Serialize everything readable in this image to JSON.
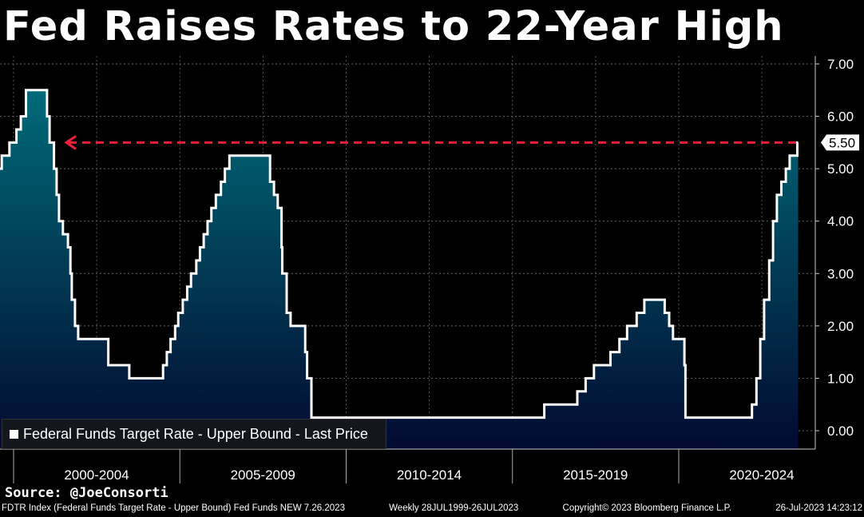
{
  "title": "Fed Raises Rates to 22-Year High",
  "source": "Source: @JoeConsorti",
  "footer": {
    "security": "FDTR Index (Federal Funds Target Rate - Upper Bound) Fed Funds NEW 7.26.2023",
    "range": "Weekly 28JUL1999-26JUL2023",
    "copyright": "Copyright© 2023 Bloomberg Finance L.P.",
    "timestamp": "26-Jul-2023 14:23:12"
  },
  "chart_data": {
    "type": "area",
    "title": "Fed Raises Rates to 22-Year High",
    "legend": "Federal Funds Target Rate - Upper Bound - Last Price",
    "legend_placement": "bottom-left",
    "y_axis_side": "right",
    "ylim": [
      0,
      7
    ],
    "y_ticks": [
      "0.00",
      "1.00",
      "2.00",
      "3.00",
      "4.00",
      "5.00",
      "6.00",
      "7.00"
    ],
    "x_ticks": [
      "2000-2004",
      "2005-2009",
      "2010-2014",
      "2015-2019",
      "2020-2024"
    ],
    "grid": true,
    "last_value": "5.50",
    "annotation": "dashed red arrow at 5.50 pointing back to 2000-2001",
    "colors": {
      "line": "#ffffff",
      "fill_top": "#006a78",
      "fill_bottom": "#020a30",
      "arrow": "#f0203c"
    },
    "steps": [
      [
        "1999-07-28",
        5.0
      ],
      [
        "1999-08-24",
        5.25
      ],
      [
        "1999-11-16",
        5.5
      ],
      [
        "2000-02-02",
        5.75
      ],
      [
        "2000-03-21",
        6.0
      ],
      [
        "2000-05-16",
        6.5
      ],
      [
        "2001-01-03",
        6.0
      ],
      [
        "2001-01-31",
        5.5
      ],
      [
        "2001-03-20",
        5.0
      ],
      [
        "2001-04-18",
        4.5
      ],
      [
        "2001-05-15",
        4.0
      ],
      [
        "2001-06-27",
        3.75
      ],
      [
        "2001-08-21",
        3.5
      ],
      [
        "2001-09-17",
        3.0
      ],
      [
        "2001-10-02",
        2.5
      ],
      [
        "2001-11-06",
        2.0
      ],
      [
        "2001-12-11",
        1.75
      ],
      [
        "2002-11-06",
        1.25
      ],
      [
        "2003-06-25",
        1.0
      ],
      [
        "2004-06-30",
        1.25
      ],
      [
        "2004-08-10",
        1.5
      ],
      [
        "2004-09-21",
        1.75
      ],
      [
        "2004-11-10",
        2.0
      ],
      [
        "2004-12-14",
        2.25
      ],
      [
        "2005-02-02",
        2.5
      ],
      [
        "2005-03-22",
        2.75
      ],
      [
        "2005-05-03",
        3.0
      ],
      [
        "2005-06-30",
        3.25
      ],
      [
        "2005-08-09",
        3.5
      ],
      [
        "2005-09-20",
        3.75
      ],
      [
        "2005-11-01",
        4.0
      ],
      [
        "2005-12-13",
        4.25
      ],
      [
        "2006-01-31",
        4.5
      ],
      [
        "2006-03-28",
        4.75
      ],
      [
        "2006-05-10",
        5.0
      ],
      [
        "2006-06-29",
        5.25
      ],
      [
        "2007-09-18",
        4.75
      ],
      [
        "2007-10-31",
        4.5
      ],
      [
        "2007-12-11",
        4.25
      ],
      [
        "2008-01-22",
        3.5
      ],
      [
        "2008-01-30",
        3.0
      ],
      [
        "2008-03-18",
        2.25
      ],
      [
        "2008-04-30",
        2.0
      ],
      [
        "2008-10-08",
        1.5
      ],
      [
        "2008-10-29",
        1.0
      ],
      [
        "2008-12-16",
        0.25
      ],
      [
        "2015-12-16",
        0.5
      ],
      [
        "2016-12-14",
        0.75
      ],
      [
        "2017-03-15",
        1.0
      ],
      [
        "2017-06-14",
        1.25
      ],
      [
        "2017-12-13",
        1.5
      ],
      [
        "2018-03-21",
        1.75
      ],
      [
        "2018-06-13",
        2.0
      ],
      [
        "2018-09-26",
        2.25
      ],
      [
        "2018-12-19",
        2.5
      ],
      [
        "2019-07-31",
        2.25
      ],
      [
        "2019-09-18",
        2.0
      ],
      [
        "2019-10-30",
        1.75
      ],
      [
        "2020-03-03",
        1.25
      ],
      [
        "2020-03-15",
        0.25
      ],
      [
        "2022-03-16",
        0.5
      ],
      [
        "2022-05-04",
        1.0
      ],
      [
        "2022-06-15",
        1.75
      ],
      [
        "2022-07-27",
        2.5
      ],
      [
        "2022-09-21",
        3.25
      ],
      [
        "2022-11-02",
        4.0
      ],
      [
        "2022-12-14",
        4.5
      ],
      [
        "2023-02-01",
        4.75
      ],
      [
        "2023-03-22",
        5.0
      ],
      [
        "2023-05-03",
        5.25
      ],
      [
        "2023-07-26",
        5.5
      ]
    ]
  }
}
